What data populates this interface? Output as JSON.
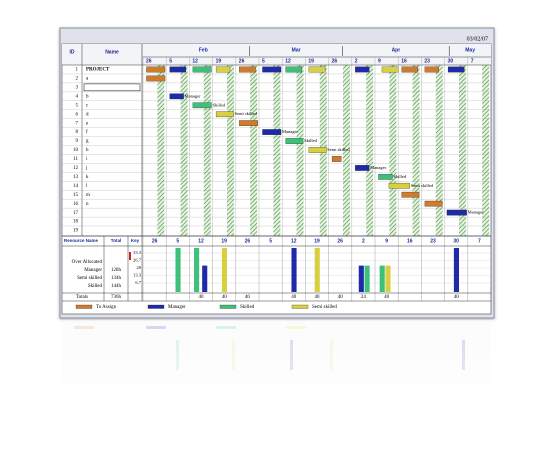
{
  "date": "03/02/07",
  "columns": {
    "id": "ID",
    "name": "Name"
  },
  "months": [
    "Feb",
    "Mar",
    "Apr",
    "May"
  ],
  "weeks": [
    "26",
    "5",
    "12",
    "19",
    "26",
    "5",
    "12",
    "19",
    "26",
    "2",
    "9",
    "16",
    "23",
    "30",
    "7"
  ],
  "tasks": [
    {
      "id": 1,
      "name": "PROJECT",
      "bar_label": null
    },
    {
      "id": 2,
      "name": "a",
      "bar_label": null
    },
    {
      "id": 3,
      "name": null,
      "bar_label": null
    },
    {
      "id": 4,
      "name": "b",
      "bar_label": "Manager"
    },
    {
      "id": 5,
      "name": "c",
      "bar_label": "Skilled"
    },
    {
      "id": 6,
      "name": "d",
      "bar_label": "Semi skilled"
    },
    {
      "id": 7,
      "name": "e",
      "bar_label": null
    },
    {
      "id": 8,
      "name": "f",
      "bar_label": "Manager"
    },
    {
      "id": 9,
      "name": "g",
      "bar_label": "Skilled"
    },
    {
      "id": 10,
      "name": "h",
      "bar_label": "Semi skilled"
    },
    {
      "id": 11,
      "name": "i",
      "bar_label": null
    },
    {
      "id": 12,
      "name": "j",
      "bar_label": "Manager"
    },
    {
      "id": 13,
      "name": "k",
      "bar_label": "Skilled"
    },
    {
      "id": 14,
      "name": "l",
      "bar_label": "Semi skilled"
    },
    {
      "id": 15,
      "name": "m",
      "bar_label": null
    },
    {
      "id": 16,
      "name": "n",
      "bar_label": null
    },
    {
      "id": 17,
      "name": null,
      "bar_label": "Manager"
    },
    {
      "id": 18,
      "name": null,
      "bar_label": null
    },
    {
      "id": 19,
      "name": null,
      "bar_label": null
    }
  ],
  "resources": {
    "header": {
      "name": "Resource Name",
      "total": "Total",
      "key": "Key"
    },
    "rows": [
      {
        "name": "Over Allocated",
        "total": null
      },
      {
        "name": "Manager",
        "total": "128h"
      },
      {
        "name": "Semi skilled",
        "total": "134h"
      },
      {
        "name": "Skilled",
        "total": "144h"
      }
    ],
    "key_ticks": [
      "33.3",
      "26.7",
      "20",
      "13.3",
      "6.7"
    ],
    "totals_label": "Totals",
    "totals_total": "736h",
    "week_totals": [
      null,
      null,
      40,
      40,
      40,
      null,
      40,
      40,
      40,
      24,
      40,
      null,
      null,
      40,
      null
    ]
  },
  "legend": [
    "To Assign",
    "Manager",
    "Skilled",
    "Semi skilled"
  ]
}
